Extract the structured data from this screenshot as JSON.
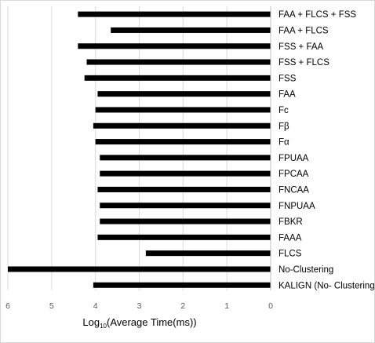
{
  "chart_data": {
    "type": "bar",
    "orientation": "horizontal",
    "x_reversed": true,
    "categories": [
      "FAA + FLCS + FSS",
      "FAA + FLCS",
      "FSS + FAA",
      "FSS + FLCS",
      "FSS",
      "FAA",
      "Fc",
      "Fβ",
      "Fα",
      "FPUAA",
      "FPCAA",
      "FNCAA",
      "FNPUAA",
      "FBKR",
      "FAAA",
      "FLCS",
      "No-Clustering",
      "KALIGN (No- Clustering)"
    ],
    "values": [
      4.4,
      3.65,
      4.4,
      4.2,
      4.25,
      3.95,
      4.0,
      4.05,
      4.0,
      3.9,
      3.9,
      3.95,
      3.9,
      3.9,
      3.95,
      2.85,
      6.0,
      4.05
    ],
    "xlabel_main": "Log",
    "xlabel_sub": "10",
    "xlabel_rest": "(Average Time(ms))",
    "xlim": [
      0,
      6
    ],
    "xticks": [
      "6",
      "5",
      "4",
      "3",
      "2",
      "1",
      "0"
    ],
    "grid": true,
    "bar_color": "#000000",
    "gridline_color": "#d9d9d9"
  }
}
